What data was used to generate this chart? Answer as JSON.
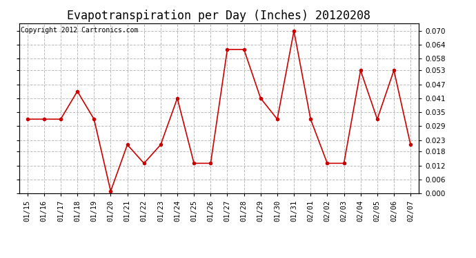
{
  "title": "Evapotranspiration per Day (Inches) 20120208",
  "copyright_text": "Copyright 2012 Cartronics.com",
  "dates": [
    "01/15",
    "01/16",
    "01/17",
    "01/18",
    "01/19",
    "01/20",
    "01/21",
    "01/22",
    "01/23",
    "01/24",
    "01/25",
    "01/26",
    "01/27",
    "01/28",
    "01/29",
    "01/30",
    "01/31",
    "02/01",
    "02/02",
    "02/03",
    "02/04",
    "02/05",
    "02/06",
    "02/07"
  ],
  "values": [
    0.032,
    0.032,
    0.032,
    0.044,
    0.032,
    0.001,
    0.021,
    0.013,
    0.021,
    0.041,
    0.013,
    0.013,
    0.062,
    0.062,
    0.041,
    0.032,
    0.07,
    0.032,
    0.013,
    0.013,
    0.053,
    0.032,
    0.053,
    0.021
  ],
  "line_color": "#cc0000",
  "marker": "o",
  "marker_size": 3,
  "ylim": [
    0.0,
    0.0733
  ],
  "yticks": [
    0.0,
    0.006,
    0.012,
    0.018,
    0.023,
    0.029,
    0.035,
    0.041,
    0.047,
    0.053,
    0.058,
    0.064,
    0.07
  ],
  "background_color": "#ffffff",
  "grid_color": "#bbbbbb",
  "title_fontsize": 12,
  "copyright_fontsize": 7,
  "tick_fontsize": 7.5
}
